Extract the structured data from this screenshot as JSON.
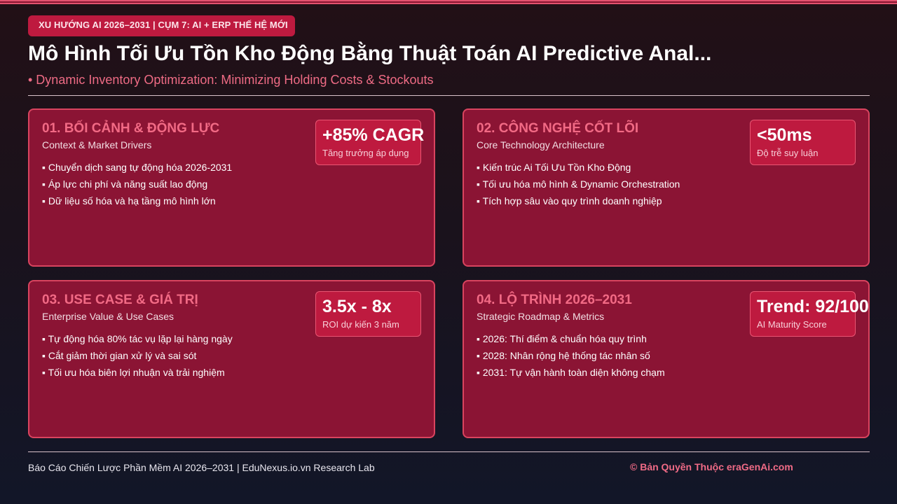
{
  "tag": "XU HƯỚNG AI 2026–2031 | CỤM 7: AI + ERP THẾ HỆ MỚI",
  "title": "Mô Hình Tối Ưu Tồn Kho Động Bằng Thuật Toán AI Predictive Anal...",
  "subtitle": "• Dynamic Inventory Optimization: Minimizing Holding Costs & Stockouts",
  "cards": [
    {
      "title": "01. BỐI CẢNH & ĐỘNG LỰC",
      "subtitle": "Context & Market Drivers",
      "bullets": [
        "Chuyển dịch sang tự động hóa 2026-2031",
        "Áp lực chi phí và năng suất lao động",
        "Dữ liệu số hóa và hạ tầng mô hình lớn"
      ],
      "metric": {
        "value": "+85% CAGR",
        "label": "Tăng trưởng áp dụng"
      }
    },
    {
      "title": "02. CÔNG NGHỆ CỐT LÕI",
      "subtitle": "Core Technology Architecture",
      "bullets": [
        "Kiến trúc Ai Tối Ưu Tồn Kho Động",
        "Tối ưu hóa mô hình & Dynamic Orchestration",
        "Tích hợp sâu vào quy trình doanh nghiệp"
      ],
      "metric": {
        "value": "<50ms",
        "label": "Độ trễ suy luận"
      }
    },
    {
      "title": "03. USE CASE & GIÁ TRỊ",
      "subtitle": "Enterprise Value & Use Cases",
      "bullets": [
        "Tự động hóa 80% tác vụ lặp lại hàng ngày",
        "Cắt giảm thời gian xử lý và sai sót",
        "Tối ưu hóa biên lợi nhuận và trải nghiệm"
      ],
      "metric": {
        "value": "3.5x - 8x",
        "label": "ROI dự kiến 3 năm"
      }
    },
    {
      "title": "04. LỘ TRÌNH 2026–2031",
      "subtitle": "Strategic Roadmap & Metrics",
      "bullets": [
        "2026: Thí điểm & chuẩn hóa quy trình",
        "2028: Nhân rộng hệ thống tác nhân số",
        "2031: Tự vận hành toàn diện không chạm"
      ],
      "metric": {
        "value": "Trend: 92/100",
        "label": "AI Maturity Score"
      }
    }
  ],
  "footer": {
    "left": "Báo Cáo Chiến Lược Phần Mềm AI 2026–2031 | EduNexus.io.vn Research Lab",
    "right": "© Bản Quyền Thuộc eraGenAi.com"
  },
  "colors": {
    "accent": "#be1a3f",
    "card": "#8b1434",
    "heading": "#f26a85"
  }
}
